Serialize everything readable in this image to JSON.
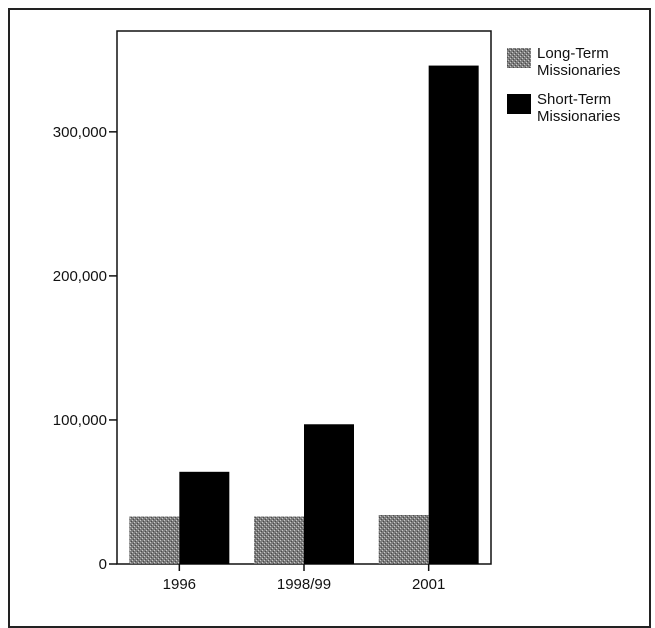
{
  "chart_data": {
    "type": "bar",
    "title": "",
    "xlabel": "",
    "ylabel": "",
    "categories": [
      "1996",
      "1998/99",
      "2001"
    ],
    "series": [
      {
        "name": "Long-Term Missionaries",
        "values": [
          33000,
          33000,
          34000
        ],
        "color": "#8a8a8a",
        "pattern": "stipple"
      },
      {
        "name": "Short-Term Missionaries",
        "values": [
          64000,
          97000,
          346000
        ],
        "color": "#000000",
        "pattern": "solid"
      }
    ],
    "ylim": [
      0,
      370000
    ],
    "y_ticks": [
      {
        "value": 0,
        "label": "0"
      },
      {
        "value": 100000,
        "label": "100,000"
      },
      {
        "value": 200000,
        "label": "200,000"
      },
      {
        "value": 300000,
        "label": "300,000"
      }
    ],
    "legend": {
      "placement": "top-right-outside",
      "entries": [
        {
          "label_lines": [
            "Long-Term",
            "Missionaries"
          ]
        },
        {
          "label_lines": [
            "Short-Term",
            "Missionaries"
          ]
        }
      ]
    },
    "grid": false
  }
}
